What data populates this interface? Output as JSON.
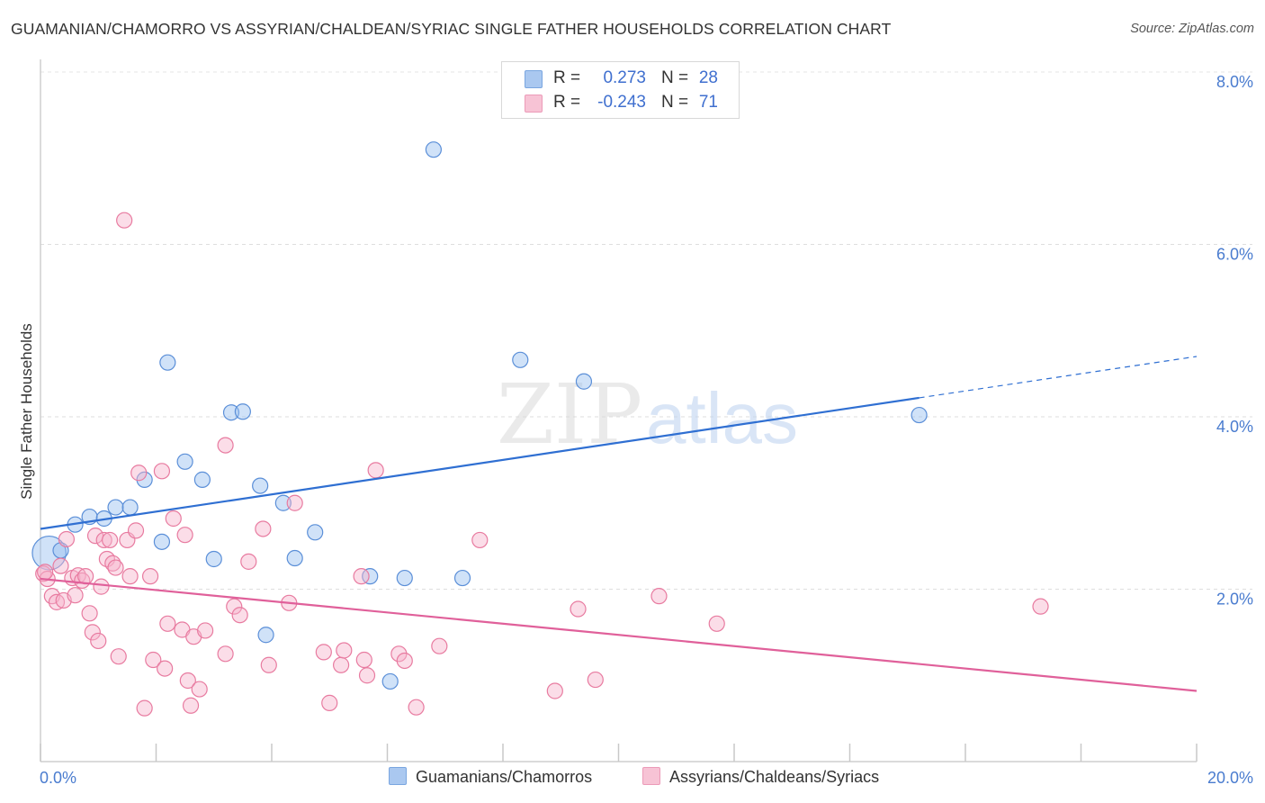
{
  "title": "GUAMANIAN/CHAMORRO VS ASSYRIAN/CHALDEAN/SYRIAC SINGLE FATHER HOUSEHOLDS CORRELATION CHART",
  "source": "Source: ZipAtlas.com",
  "watermark": {
    "part1": "ZIP",
    "part2": "atlas"
  },
  "legend": {
    "rows": [
      {
        "r_label": "R =",
        "r_value": "0.273",
        "n_label": "N =",
        "n_value": "28",
        "color": "#aac8f0",
        "border": "#7aa6e0"
      },
      {
        "r_label": "R =",
        "r_value": "-0.243",
        "n_label": "N =",
        "n_value": "71",
        "color": "#f7c3d5",
        "border": "#ec9bb8"
      }
    ]
  },
  "bottom_legend": [
    {
      "label": "Guamanians/Chamorros",
      "color": "#aac8f0",
      "border": "#7aa6e0"
    },
    {
      "label": "Assyrians/Chaldeans/Syriacs",
      "color": "#f7c3d5",
      "border": "#ec9bb8"
    }
  ],
  "chart_data": {
    "type": "scatter",
    "title": "GUAMANIAN/CHAMORRO VS ASSYRIAN/CHALDEAN/SYRIAC SINGLE FATHER HOUSEHOLDS CORRELATION CHART",
    "xlabel": "",
    "ylabel": "Single Father Households",
    "xlim": [
      0,
      20
    ],
    "ylim": [
      0,
      8.3
    ],
    "x_tick_labels": [
      "0.0%",
      "20.0%"
    ],
    "y_ticks": [
      2,
      4,
      6,
      8
    ],
    "y_tick_labels": [
      "2.0%",
      "4.0%",
      "6.0%",
      "8.0%"
    ],
    "grid": true,
    "legend_position": "top-center",
    "series": [
      {
        "name": "Guamanians/Chamorros",
        "color": "#5b8fd8",
        "fill": "rgba(150,190,240,0.45)",
        "line_color": "#2f6fd2",
        "trend": {
          "x0": 0,
          "y0": 2.7,
          "x1": 15.2,
          "y1": 4.22,
          "dash_x1": 20,
          "dash_y1": 4.7
        },
        "points": [
          [
            0.15,
            2.42,
            2.2
          ],
          [
            0.35,
            2.45,
            1
          ],
          [
            0.6,
            2.75,
            1
          ],
          [
            0.85,
            2.84,
            1
          ],
          [
            1.1,
            2.82,
            1
          ],
          [
            1.3,
            2.95,
            1
          ],
          [
            1.55,
            2.95,
            1
          ],
          [
            1.8,
            3.27,
            1
          ],
          [
            2.1,
            2.55,
            1
          ],
          [
            2.2,
            4.63,
            1
          ],
          [
            2.5,
            3.48,
            1
          ],
          [
            2.8,
            3.27,
            1
          ],
          [
            3.0,
            2.35,
            1
          ],
          [
            3.3,
            4.05,
            1
          ],
          [
            3.5,
            4.06,
            1
          ],
          [
            3.8,
            3.2,
            1
          ],
          [
            3.9,
            1.47,
            1
          ],
          [
            4.2,
            3.0,
            1
          ],
          [
            4.4,
            2.36,
            1
          ],
          [
            4.75,
            2.66,
            1
          ],
          [
            5.7,
            2.15,
            1
          ],
          [
            6.05,
            0.93,
            1
          ],
          [
            6.3,
            2.13,
            1
          ],
          [
            6.8,
            7.1,
            1
          ],
          [
            7.3,
            2.13,
            1
          ],
          [
            8.3,
            4.66,
            1
          ],
          [
            9.4,
            4.41,
            1
          ],
          [
            15.2,
            4.02,
            1
          ]
        ]
      },
      {
        "name": "Assyrians/Chaldeans/Syriacs",
        "color": "#e87ba0",
        "fill": "rgba(247,180,205,0.45)",
        "line_color": "#e0609a",
        "trend": {
          "x0": 0,
          "y0": 2.12,
          "x1": 20,
          "y1": 0.82
        },
        "points": [
          [
            0.05,
            2.18,
            1
          ],
          [
            0.12,
            2.12,
            1
          ],
          [
            0.2,
            1.92,
            1
          ],
          [
            0.28,
            1.85,
            1
          ],
          [
            0.35,
            2.27,
            1
          ],
          [
            0.4,
            1.87,
            1
          ],
          [
            0.45,
            2.58,
            1
          ],
          [
            0.55,
            2.13,
            1
          ],
          [
            0.6,
            1.93,
            1
          ],
          [
            0.65,
            2.16,
            1
          ],
          [
            0.72,
            2.1,
            1
          ],
          [
            0.78,
            2.15,
            1
          ],
          [
            0.85,
            1.72,
            1
          ],
          [
            0.9,
            1.5,
            1
          ],
          [
            0.95,
            2.62,
            1
          ],
          [
            1.0,
            1.4,
            1
          ],
          [
            1.05,
            2.03,
            1
          ],
          [
            1.1,
            2.57,
            1
          ],
          [
            1.15,
            2.35,
            1
          ],
          [
            1.2,
            2.57,
            1
          ],
          [
            1.25,
            2.3,
            1
          ],
          [
            1.3,
            2.25,
            1
          ],
          [
            1.35,
            1.22,
            1
          ],
          [
            1.45,
            6.28,
            1
          ],
          [
            1.5,
            2.57,
            1
          ],
          [
            1.55,
            2.15,
            1
          ],
          [
            1.65,
            2.68,
            1
          ],
          [
            1.7,
            3.35,
            1
          ],
          [
            1.8,
            0.62,
            1
          ],
          [
            1.9,
            2.15,
            1
          ],
          [
            1.95,
            1.18,
            1
          ],
          [
            2.1,
            3.37,
            1
          ],
          [
            2.15,
            1.08,
            1
          ],
          [
            2.2,
            1.6,
            1
          ],
          [
            2.3,
            2.82,
            1
          ],
          [
            2.45,
            1.53,
            1
          ],
          [
            2.5,
            2.63,
            1
          ],
          [
            2.55,
            0.94,
            1
          ],
          [
            2.6,
            0.65,
            1
          ],
          [
            2.65,
            1.45,
            1
          ],
          [
            2.75,
            0.84,
            1
          ],
          [
            2.85,
            1.52,
            1
          ],
          [
            3.2,
            3.67,
            1
          ],
          [
            3.2,
            1.25,
            1
          ],
          [
            3.35,
            1.8,
            1
          ],
          [
            3.45,
            1.7,
            1
          ],
          [
            3.6,
            2.32,
            1
          ],
          [
            3.85,
            2.7,
            1
          ],
          [
            3.95,
            1.12,
            1
          ],
          [
            4.3,
            1.84,
            1
          ],
          [
            4.4,
            3.0,
            1
          ],
          [
            4.9,
            1.27,
            1
          ],
          [
            5.0,
            0.68,
            1
          ],
          [
            5.2,
            1.12,
            1
          ],
          [
            5.25,
            1.29,
            1
          ],
          [
            5.55,
            2.15,
            1
          ],
          [
            5.6,
            1.18,
            1
          ],
          [
            5.65,
            1.0,
            1
          ],
          [
            5.8,
            3.38,
            1
          ],
          [
            6.2,
            1.25,
            1
          ],
          [
            6.3,
            1.17,
            1
          ],
          [
            6.5,
            0.63,
            1
          ],
          [
            6.9,
            1.34,
            1
          ],
          [
            7.6,
            2.57,
            1
          ],
          [
            8.9,
            0.82,
            1
          ],
          [
            9.3,
            1.77,
            1
          ],
          [
            9.6,
            0.95,
            1
          ],
          [
            10.7,
            1.92,
            1
          ],
          [
            11.7,
            1.6,
            1
          ],
          [
            17.3,
            1.8,
            1
          ],
          [
            0.08,
            2.2,
            1
          ]
        ]
      }
    ]
  }
}
